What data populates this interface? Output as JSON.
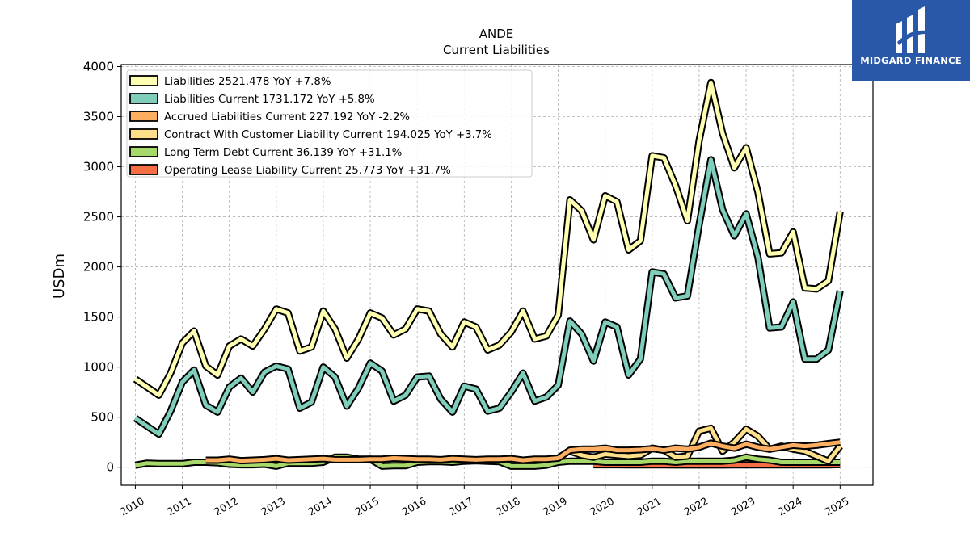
{
  "chart_data": {
    "type": "line",
    "title": "ANDE",
    "subtitle": "Current  Liabilities",
    "ylabel": "USDm",
    "xlabel": "",
    "xlim": [
      2009.7,
      2025.7
    ],
    "ylim": [
      -180,
      4020
    ],
    "yticks": [
      0,
      500,
      1000,
      1500,
      2000,
      2500,
      3000,
      3500,
      4000
    ],
    "xticks": [
      2010,
      2011,
      2012,
      2013,
      2014,
      2015,
      2016,
      2017,
      2018,
      2019,
      2020,
      2021,
      2022,
      2023,
      2024,
      2025
    ],
    "grid": true,
    "legend_position": "top-left",
    "series": [
      {
        "name": "Liabilities",
        "legend_label": "Liabilities  2521.478 YoY +7.8%",
        "color": "#ffffb2",
        "x": [
          2010.0,
          2010.25,
          2010.5,
          2010.75,
          2011.0,
          2011.25,
          2011.5,
          2011.75,
          2012.0,
          2012.25,
          2012.5,
          2012.75,
          2013.0,
          2013.25,
          2013.5,
          2013.75,
          2014.0,
          2014.25,
          2014.5,
          2014.75,
          2015.0,
          2015.25,
          2015.5,
          2015.75,
          2016.0,
          2016.25,
          2016.5,
          2016.75,
          2017.0,
          2017.25,
          2017.5,
          2017.75,
          2018.0,
          2018.25,
          2018.5,
          2018.75,
          2019.0,
          2019.25,
          2019.5,
          2019.75,
          2020.0,
          2020.25,
          2020.5,
          2020.75,
          2021.0,
          2021.25,
          2021.5,
          2021.75,
          2022.0,
          2022.25,
          2022.5,
          2022.75,
          2023.0,
          2023.25,
          2023.5,
          2023.75,
          2024.0,
          2024.25,
          2024.5,
          2024.75,
          2025.0
        ],
        "y": [
          880,
          800,
          720,
          940,
          1240,
          1360,
          1010,
          920,
          1210,
          1280,
          1210,
          1380,
          1580,
          1540,
          1160,
          1200,
          1560,
          1380,
          1090,
          1280,
          1540,
          1490,
          1320,
          1380,
          1580,
          1560,
          1330,
          1200,
          1450,
          1400,
          1170,
          1220,
          1350,
          1560,
          1280,
          1310,
          1520,
          2670,
          2560,
          2270,
          2710,
          2650,
          2170,
          2260,
          3110,
          3090,
          2810,
          2460,
          3260,
          3840,
          3330,
          2990,
          3190,
          2750,
          2130,
          2140,
          2350,
          1790,
          1780,
          1860,
          2550
        ]
      },
      {
        "name": "Liabilities Current",
        "legend_label": "Liabilities Current  1731.172 YoY +5.8%",
        "color": "#7fcdbb",
        "x": [
          2010.0,
          2010.25,
          2010.5,
          2010.75,
          2011.0,
          2011.25,
          2011.5,
          2011.75,
          2012.0,
          2012.25,
          2012.5,
          2012.75,
          2013.0,
          2013.25,
          2013.5,
          2013.75,
          2014.0,
          2014.25,
          2014.5,
          2014.75,
          2015.0,
          2015.25,
          2015.5,
          2015.75,
          2016.0,
          2016.25,
          2016.5,
          2016.75,
          2017.0,
          2017.25,
          2017.5,
          2017.75,
          2018.0,
          2018.25,
          2018.5,
          2018.75,
          2019.0,
          2019.25,
          2019.5,
          2019.75,
          2020.0,
          2020.25,
          2020.5,
          2020.75,
          2021.0,
          2021.25,
          2021.5,
          2021.75,
          2022.0,
          2022.25,
          2022.5,
          2022.75,
          2023.0,
          2023.25,
          2023.5,
          2023.75,
          2024.0,
          2024.25,
          2024.5,
          2024.75,
          2025.0
        ],
        "y": [
          490,
          410,
          330,
          560,
          850,
          970,
          620,
          550,
          800,
          890,
          750,
          950,
          1010,
          980,
          590,
          650,
          1000,
          900,
          610,
          790,
          1040,
          960,
          660,
          720,
          900,
          910,
          680,
          550,
          810,
          780,
          560,
          590,
          750,
          940,
          660,
          700,
          820,
          1460,
          1330,
          1060,
          1450,
          1400,
          920,
          1080,
          1950,
          1930,
          1690,
          1710,
          2420,
          3070,
          2570,
          2310,
          2530,
          2100,
          1390,
          1400,
          1650,
          1080,
          1080,
          1170,
          1760
        ]
      },
      {
        "name": "Accrued Liabilities Current",
        "legend_label": "Accrued Liabilities Current  227.192 YoY -2.2%",
        "color": "#fdae61",
        "x": [
          2011.5,
          2011.75,
          2012.0,
          2012.25,
          2012.5,
          2012.75,
          2013.0,
          2013.25,
          2013.5,
          2013.75,
          2014.0,
          2014.25,
          2014.5,
          2014.75,
          2015.0,
          2015.25,
          2015.5,
          2015.75,
          2016.0,
          2016.25,
          2016.5,
          2016.75,
          2017.0,
          2017.25,
          2017.5,
          2017.75,
          2018.0,
          2018.25,
          2018.5,
          2018.75,
          2019.0,
          2019.25,
          2019.5,
          2019.75,
          2020.0,
          2020.25,
          2020.5,
          2020.75,
          2021.0,
          2021.25,
          2021.5,
          2021.75,
          2022.0,
          2022.25,
          2022.5,
          2022.75,
          2023.0,
          2023.25,
          2023.5,
          2023.75,
          2024.0,
          2024.25,
          2024.5,
          2024.75,
          2025.0
        ],
        "y": [
          70,
          70,
          80,
          65,
          70,
          75,
          85,
          70,
          75,
          80,
          85,
          75,
          75,
          75,
          80,
          80,
          90,
          85,
          80,
          80,
          75,
          85,
          80,
          75,
          80,
          80,
          85,
          70,
          80,
          80,
          90,
          170,
          180,
          180,
          190,
          170,
          170,
          175,
          185,
          170,
          190,
          180,
          200,
          240,
          210,
          190,
          230,
          200,
          180,
          200,
          220,
          210,
          220,
          235,
          250
        ]
      },
      {
        "name": "Contract With Customer Liability Current",
        "legend_label": "Contract With Customer Liability Current  194.025 YoY +3.7%",
        "color": "#fee08b",
        "x": [
          2019.25,
          2019.5,
          2019.75,
          2020.0,
          2020.25,
          2020.5,
          2020.75,
          2021.0,
          2021.25,
          2021.5,
          2021.75,
          2022.0,
          2022.25,
          2022.5,
          2022.75,
          2023.0,
          2023.25,
          2023.5,
          2023.75,
          2024.0,
          2024.25,
          2024.5,
          2024.75,
          2025.0
        ],
        "y": [
          160,
          120,
          100,
          130,
          120,
          110,
          120,
          190,
          170,
          100,
          110,
          360,
          390,
          160,
          250,
          380,
          310,
          180,
          210,
          180,
          160,
          110,
          60,
          210
        ]
      },
      {
        "name": "Long Term Debt Current",
        "legend_label": "Long Term Debt Current  36.139 YoY +31.1%",
        "color": "#a6d96a",
        "x": [
          2010.0,
          2010.25,
          2010.5,
          2010.75,
          2011.0,
          2011.25,
          2011.5,
          2011.75,
          2012.0,
          2012.25,
          2012.5,
          2012.75,
          2013.0,
          2013.25,
          2013.5,
          2013.75,
          2014.0,
          2014.25,
          2014.5,
          2014.75,
          2015.0,
          2015.25,
          2015.5,
          2015.75,
          2016.0,
          2016.25,
          2016.5,
          2016.75,
          2017.0,
          2017.25,
          2017.5,
          2017.75,
          2018.0,
          2018.25,
          2018.5,
          2018.75,
          2019.0,
          2019.25,
          2019.5,
          2019.75,
          2020.0,
          2020.25,
          2020.5,
          2020.75,
          2021.0,
          2021.25,
          2021.5,
          2021.75,
          2022.0,
          2022.25,
          2022.5,
          2022.75,
          2023.0,
          2023.25,
          2023.5,
          2023.75,
          2024.0,
          2024.25,
          2024.5,
          2024.75,
          2025.0
        ],
        "y": [
          20,
          40,
          35,
          35,
          35,
          50,
          50,
          45,
          30,
          25,
          25,
          30,
          10,
          40,
          40,
          40,
          50,
          100,
          100,
          80,
          80,
          10,
          15,
          15,
          50,
          55,
          55,
          50,
          60,
          65,
          60,
          55,
          10,
          10,
          10,
          20,
          50,
          60,
          60,
          60,
          50,
          50,
          50,
          50,
          60,
          60,
          50,
          60,
          60,
          60,
          60,
          70,
          100,
          80,
          70,
          50,
          50,
          50,
          50,
          50,
          50
        ]
      },
      {
        "name": "Operating Lease Liability Current",
        "legend_label": "Operating Lease Liability Current  25.773 YoY +31.7%",
        "color": "#f46d43",
        "x": [
          2019.75,
          2020.0,
          2020.25,
          2020.5,
          2020.75,
          2021.0,
          2021.25,
          2021.5,
          2021.75,
          2022.0,
          2022.25,
          2022.5,
          2022.75,
          2023.0,
          2023.25,
          2023.5,
          2023.75,
          2024.0,
          2024.25,
          2024.5,
          2024.75,
          2025.0
        ],
        "y": [
          25,
          25,
          25,
          24,
          24,
          23,
          23,
          22,
          22,
          22,
          22,
          22,
          23,
          23,
          23,
          23,
          23,
          23,
          23,
          24,
          24,
          26
        ]
      }
    ]
  },
  "branding": {
    "logo_text": "MIDGARD FINANCE",
    "logo_color": "#2a58a8"
  }
}
